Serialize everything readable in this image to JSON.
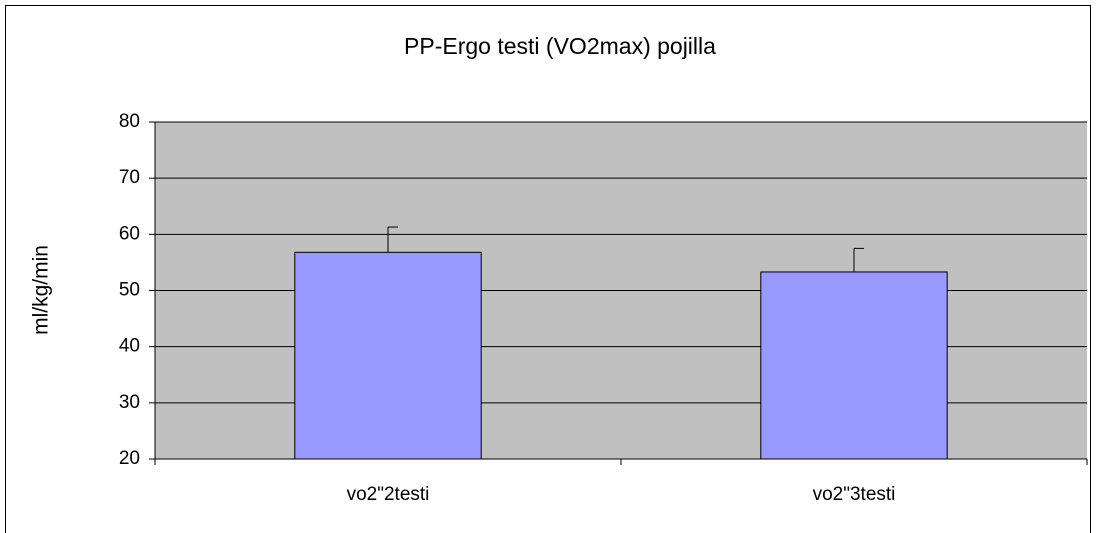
{
  "chart_data": {
    "type": "bar",
    "title": "PP-Ergo testi (VO2max) pojilla",
    "ylabel": "ml/kg/min",
    "categories": [
      "vo2\"2testi",
      "vo2\"3testi"
    ],
    "values": [
      56.8,
      53.3
    ],
    "errors": [
      4.5,
      4.2
    ],
    "color": "#9999ff",
    "ylim": [
      20,
      80
    ],
    "yticks": [
      20,
      30,
      40,
      50,
      60,
      70,
      80
    ],
    "grid": true
  }
}
